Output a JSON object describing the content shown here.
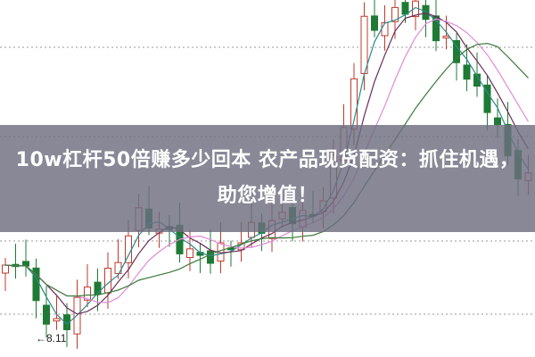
{
  "article": {
    "title": "10w杠杆50倍赚多少回本 农产品现货配资：抓住机遇，助您增值！"
  },
  "chart_image": {
    "kind": "candlestick",
    "low_marker_label": "←8.11",
    "colors": {
      "up": "#c0392b",
      "down": "#1e7a34",
      "ma_short": "#6a2c5a",
      "ma_mid": "#2a8a8a",
      "ma_long": "#3a7a3a",
      "ma_pink": "#e08ad8"
    }
  }
}
